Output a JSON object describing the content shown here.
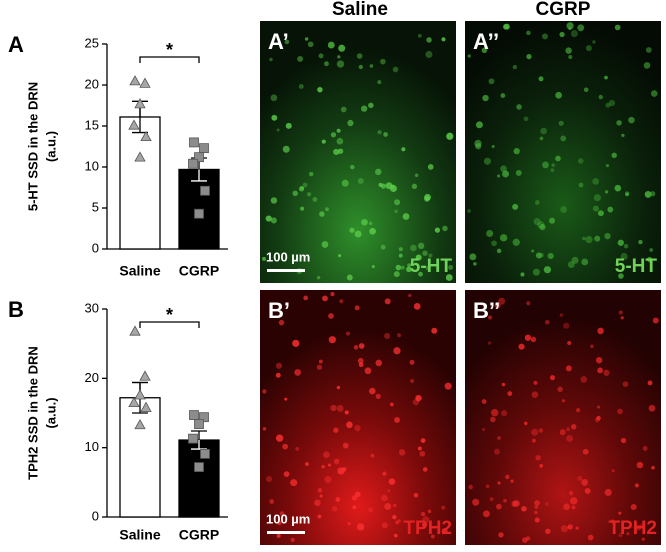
{
  "chart_data": [
    {
      "type": "bar",
      "panel": "A",
      "ylabel": [
        "5-HT SSD in the DRN",
        "(a.u.)"
      ],
      "categories": [
        "Saline",
        "CGRP"
      ],
      "values": [
        16.1,
        9.7
      ],
      "errors": [
        1.9,
        1.4
      ],
      "points": [
        [
          20.5,
          20.2,
          17.7,
          15.1,
          13.7,
          11.2
        ],
        [
          13.0,
          12.3,
          11.2,
          10.4,
          7.1,
          4.3
        ]
      ],
      "markers": [
        "triangle",
        "square"
      ],
      "colors": [
        "#ffffff",
        "#000000"
      ],
      "point_colors": [
        "#a6a6a6",
        "#8c8c8c"
      ],
      "annotation": "*",
      "ylim": [
        0,
        25
      ],
      "yticks": [
        0,
        5,
        10,
        15,
        20,
        25
      ]
    },
    {
      "type": "bar",
      "panel": "B",
      "ylabel": [
        "TPH2 SSD in the DRN",
        "(a.u.)"
      ],
      "categories": [
        "Saline",
        "CGRP"
      ],
      "values": [
        17.2,
        11.1
      ],
      "errors": [
        2.2,
        1.3
      ],
      "points": [
        [
          26.8,
          20.3,
          17.6,
          16.5,
          15.8,
          13.3
        ],
        [
          14.7,
          14.4,
          13.4,
          11.3,
          9.1,
          7.2
        ]
      ],
      "markers": [
        "triangle",
        "square"
      ],
      "colors": [
        "#ffffff",
        "#000000"
      ],
      "point_colors": [
        "#a6a6a6",
        "#8c8c8c"
      ],
      "annotation": "*",
      "ylim": [
        0,
        30
      ],
      "yticks": [
        0,
        10,
        20,
        30
      ]
    }
  ],
  "columns": [
    "Saline",
    "CGRP"
  ],
  "images": [
    {
      "label": "A’",
      "stain": "5-HT",
      "scale_bar": "100 µm"
    },
    {
      "label": "A’’",
      "stain": "5-HT"
    },
    {
      "label": "B’",
      "stain": "TPH2",
      "scale_bar": "100 µm"
    },
    {
      "label": "B’’",
      "stain": "TPH2"
    }
  ]
}
